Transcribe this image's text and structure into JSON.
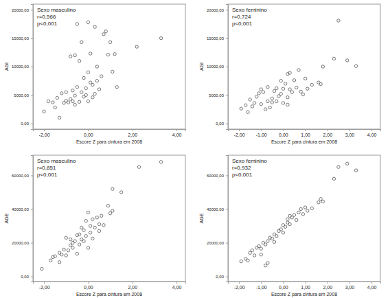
{
  "chart_data": [
    {
      "type": "scatter",
      "title": "Sexo masculino",
      "annotations": [
        "r=0,566",
        "p<0,001"
      ],
      "x_label": "Escore Z para cintura em 2008",
      "y_label": "AGI",
      "color": "#555555",
      "marker": "circle",
      "x": [
        -2.0,
        -1.8,
        -1.6,
        -1.5,
        -1.4,
        -1.3,
        -1.2,
        -1.1,
        -1.0,
        -1.0,
        -0.9,
        -0.8,
        -0.8,
        -0.7,
        -0.7,
        -0.6,
        -0.6,
        -0.5,
        -0.5,
        -0.4,
        -0.4,
        -0.3,
        -0.3,
        -0.2,
        -0.2,
        -0.1,
        -0.1,
        0.0,
        0.0,
        0.0,
        0.1,
        0.1,
        0.2,
        0.2,
        0.3,
        0.4,
        0.4,
        0.5,
        0.6,
        0.7,
        0.8,
        0.9,
        1.0,
        1.1,
        1.2,
        1.3,
        2.2,
        3.3,
        -0.6,
        0.3
      ],
      "values": [
        2100,
        3900,
        3700,
        2800,
        4500,
        1000,
        5300,
        3600,
        4000,
        5500,
        3700,
        4300,
        11800,
        3900,
        5800,
        12000,
        4900,
        17500,
        6400,
        3800,
        11000,
        14300,
        5500,
        4700,
        8000,
        6200,
        5000,
        9000,
        17800,
        3900,
        7200,
        12300,
        6800,
        4600,
        17000,
        7500,
        10000,
        6000,
        8300,
        15700,
        16200,
        12100,
        14300,
        9100,
        12200,
        6400,
        13500,
        15000,
        3300,
        5200
      ],
      "xlim": [
        -2.5,
        4.4
      ],
      "xticks": [
        {
          "value": -2,
          "label": "-2,00"
        },
        {
          "value": 0,
          "label": "0,00"
        },
        {
          "value": 2,
          "label": "2,00"
        },
        {
          "value": 4,
          "label": "4,00"
        }
      ],
      "ylim": [
        -1000,
        21000
      ],
      "yticks": [
        {
          "value": 0,
          "label": "0,00"
        },
        {
          "value": 5000,
          "label": "5000,00"
        },
        {
          "value": 10000,
          "label": "10000,00"
        },
        {
          "value": 15000,
          "label": "15000,00"
        },
        {
          "value": 20000,
          "label": "20000,00"
        }
      ]
    },
    {
      "type": "scatter",
      "title": "Sexo feminino",
      "annotations": [
        "r=0,724",
        "p<0,001"
      ],
      "x_label": "Escore Z para cintura em 2008",
      "y_label": "AGI",
      "color": "#555555",
      "marker": "circle",
      "x": [
        -1.9,
        -1.7,
        -1.6,
        -1.5,
        -1.4,
        -1.3,
        -1.2,
        -1.1,
        -1.0,
        -0.9,
        -0.8,
        -0.7,
        -0.7,
        -0.6,
        -0.5,
        -0.5,
        -0.4,
        -0.3,
        -0.3,
        -0.2,
        -0.1,
        -0.1,
        0.0,
        0.0,
        0.1,
        0.2,
        0.2,
        0.3,
        0.3,
        0.4,
        0.5,
        0.6,
        0.7,
        0.8,
        0.9,
        1.0,
        1.1,
        1.3,
        1.6,
        1.7,
        1.8,
        2.3,
        2.5,
        2.9,
        3.3,
        -1.0,
        0.2
      ],
      "values": [
        2600,
        3200,
        2000,
        4200,
        3000,
        3600,
        4700,
        5300,
        3400,
        5500,
        2500,
        3900,
        6400,
        2800,
        4400,
        3700,
        5700,
        6200,
        3900,
        4800,
        7500,
        5200,
        3600,
        6100,
        7000,
        8700,
        4600,
        6000,
        8900,
        5500,
        7600,
        6300,
        9400,
        5600,
        5100,
        7900,
        6100,
        6800,
        7200,
        6900,
        10000,
        11400,
        18100,
        11100,
        10100,
        6000,
        3300
      ],
      "xlim": [
        -2.5,
        4.4
      ],
      "xticks": [
        {
          "value": -2,
          "label": "-2,00"
        },
        {
          "value": -1,
          "label": "-1,00"
        },
        {
          "value": 0,
          "label": "0,00"
        },
        {
          "value": 1,
          "label": "1,00"
        },
        {
          "value": 2,
          "label": "2,00"
        },
        {
          "value": 3,
          "label": "3,00"
        },
        {
          "value": 4,
          "label": "4,00"
        }
      ],
      "ylim": [
        -1000,
        21000
      ],
      "yticks": [
        {
          "value": 0,
          "label": "0,00"
        },
        {
          "value": 5000,
          "label": "5000,00"
        },
        {
          "value": 10000,
          "label": "10000,00"
        },
        {
          "value": 15000,
          "label": "15000,00"
        },
        {
          "value": 20000,
          "label": "20000,00"
        }
      ]
    },
    {
      "type": "scatter",
      "title": "Sexo masculino",
      "annotations": [
        "r=0,851",
        "p<0,001"
      ],
      "x_label": "Escore Z para cintura em 2008",
      "y_label": "AGE",
      "color": "#555555",
      "marker": "circle",
      "x": [
        -2.1,
        -1.7,
        -1.6,
        -1.5,
        -1.3,
        -1.3,
        -1.2,
        -1.1,
        -1.0,
        -1.0,
        -0.9,
        -0.8,
        -0.7,
        -0.7,
        -0.6,
        -0.5,
        -0.5,
        -0.4,
        -0.4,
        -0.3,
        -0.3,
        -0.2,
        -0.2,
        -0.1,
        -0.1,
        0.0,
        0.0,
        0.1,
        0.1,
        0.2,
        0.3,
        0.4,
        0.5,
        0.5,
        0.6,
        0.7,
        0.9,
        1.0,
        1.1,
        1.1,
        1.5,
        2.3,
        3.3,
        -0.8,
        0.2
      ],
      "values": [
        4500,
        9500,
        11500,
        12000,
        8500,
        14000,
        13000,
        16000,
        23000,
        12500,
        15500,
        18500,
        17000,
        20000,
        21000,
        13500,
        24500,
        19000,
        25000,
        29000,
        22000,
        21000,
        27500,
        33000,
        24000,
        17000,
        38000,
        26000,
        30000,
        22500,
        29000,
        35000,
        31000,
        27000,
        36000,
        30500,
        42000,
        37500,
        52000,
        39000,
        50000,
        65000,
        68000,
        22000,
        34000
      ],
      "xlim": [
        -2.5,
        4.4
      ],
      "xticks": [
        {
          "value": -2,
          "label": "-2,00"
        },
        {
          "value": 0,
          "label": "0,00"
        },
        {
          "value": 2,
          "label": "2,00"
        },
        {
          "value": 4,
          "label": "4,00"
        }
      ],
      "ylim": [
        -3000,
        72000
      ],
      "yticks": [
        {
          "value": 0,
          "label": "0,00"
        },
        {
          "value": 20000,
          "label": "20000,00"
        },
        {
          "value": 40000,
          "label": "40000,00"
        },
        {
          "value": 60000,
          "label": "60000,00"
        }
      ]
    },
    {
      "type": "scatter",
      "title": "Sexo feminino",
      "annotations": [
        "r=0,932",
        "p<0,001"
      ],
      "x_label": "Escore Z para cintura em 2008",
      "y_label": "AGE",
      "color": "#555555",
      "marker": "circle",
      "x": [
        -1.9,
        -1.7,
        -1.6,
        -1.5,
        -1.4,
        -1.3,
        -1.2,
        -1.1,
        -1.0,
        -0.9,
        -0.8,
        -0.8,
        -0.7,
        -0.7,
        -0.6,
        -0.5,
        -0.4,
        -0.4,
        -0.3,
        -0.2,
        -0.1,
        0.0,
        0.0,
        0.1,
        0.2,
        0.2,
        0.3,
        0.4,
        0.5,
        0.6,
        0.7,
        0.8,
        0.9,
        1.0,
        1.1,
        1.3,
        1.6,
        1.7,
        1.8,
        2.3,
        2.5,
        2.9,
        3.3,
        -1.0,
        0.3
      ],
      "values": [
        9000,
        10500,
        9500,
        14000,
        15500,
        12500,
        17000,
        18000,
        16500,
        20000,
        19000,
        6500,
        8000,
        21000,
        23000,
        22500,
        25000,
        20500,
        24000,
        27000,
        28000,
        26000,
        30500,
        29500,
        32000,
        34000,
        31000,
        35000,
        36500,
        33500,
        38000,
        40000,
        37000,
        41000,
        39000,
        40500,
        44000,
        46000,
        44500,
        58000,
        65000,
        67000,
        63000,
        13000,
        36000
      ],
      "xlim": [
        -2.5,
        4.4
      ],
      "xticks": [
        {
          "value": -2,
          "label": "-2,00"
        },
        {
          "value": -1,
          "label": "-1,00"
        },
        {
          "value": 0,
          "label": "0,00"
        },
        {
          "value": 1,
          "label": "1,00"
        },
        {
          "value": 2,
          "label": "2,00"
        },
        {
          "value": 3,
          "label": "3,00"
        },
        {
          "value": 4,
          "label": "4,00"
        }
      ],
      "ylim": [
        -3000,
        72000
      ],
      "yticks": [
        {
          "value": 0,
          "label": "0,00"
        },
        {
          "value": 20000,
          "label": "20000,00"
        },
        {
          "value": 40000,
          "label": "40000,00"
        },
        {
          "value": 60000,
          "label": "60000,00"
        }
      ]
    }
  ]
}
